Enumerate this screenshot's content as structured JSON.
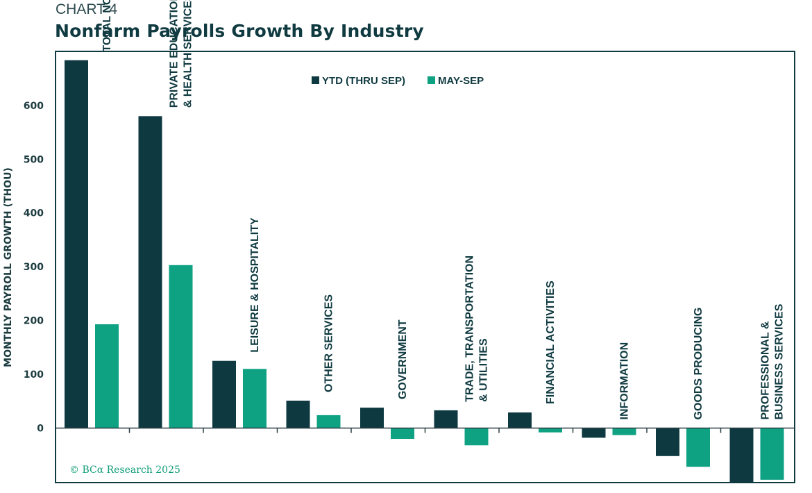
{
  "header": {
    "chart_number": "CHART 4",
    "title": "Nonfarm Payrolls Growth By Industry"
  },
  "footer": {
    "copyright": "© BCα Research 2025"
  },
  "colors": {
    "ytd": "#0f3940",
    "may_sep": "#0ea283",
    "frame": "#0f3a40",
    "text": "#0f3a40"
  },
  "chart_data": {
    "type": "bar",
    "title": "Nonfarm Payrolls Growth By Industry",
    "xlabel": "",
    "ylabel": "MONTHLY PAYROLL GROWTH (THOU)",
    "ylim": [
      -100,
      700
    ],
    "yticks": [
      0,
      100,
      200,
      300,
      400,
      500,
      600
    ],
    "grid": false,
    "legend_position": "top-center",
    "categories": [
      [
        "TOTAL NONFARM PAYROLLS"
      ],
      [
        "PRIVATE EDUCATION",
        "& HEALTH SERVICES"
      ],
      [
        "LEISURE & HOSPITALITY"
      ],
      [
        "OTHER SERVICES"
      ],
      [
        "GOVERNMENT"
      ],
      [
        "TRADE, TRANSPORTATION",
        "& UTILITIES"
      ],
      [
        "FINANCIAL ACTIVITIES"
      ],
      [
        "INFORMATION"
      ],
      [
        "GOODS PRODUCING"
      ],
      [
        "PROFESSIONAL &",
        "BUSINESS SERVICES"
      ]
    ],
    "series": [
      {
        "name": "YTD (THRU SEP)",
        "values": [
          684,
          580,
          125,
          51,
          38,
          33,
          29,
          -18,
          -52,
          -100
        ]
      },
      {
        "name": "MAY-SEP",
        "values": [
          193,
          303,
          110,
          24,
          -20,
          -32,
          -8,
          -13,
          -72,
          -96
        ]
      }
    ]
  }
}
